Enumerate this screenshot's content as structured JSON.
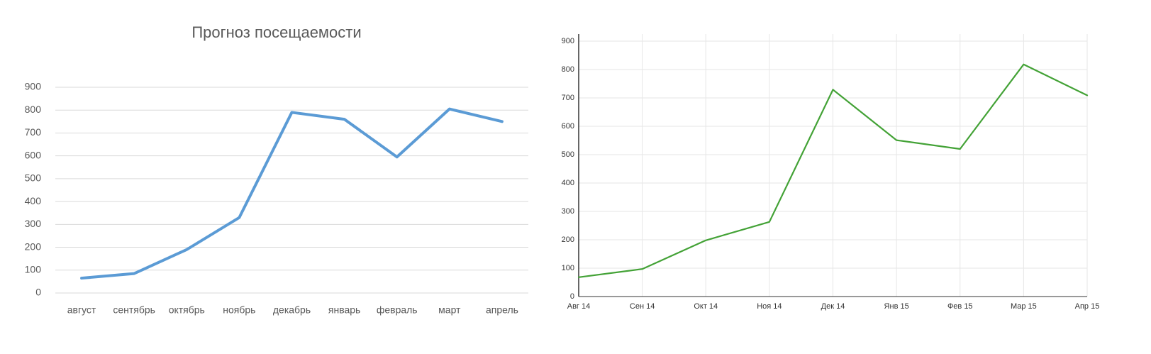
{
  "chart_data": [
    {
      "type": "line",
      "title": "Прогноз посещаемости",
      "categories": [
        "август",
        "сентябрь",
        "октябрь",
        "ноябрь",
        "декабрь",
        "январь",
        "февраль",
        "март",
        "апрель"
      ],
      "series": [
        {
          "color": "#5b9bd5",
          "values": [
            65,
            85,
            190,
            330,
            790,
            760,
            595,
            805,
            750
          ]
        }
      ],
      "ylim": [
        0,
        900
      ],
      "yticks": [
        0,
        100,
        200,
        300,
        400,
        500,
        600,
        700,
        800,
        900
      ],
      "grid": true
    },
    {
      "type": "line",
      "categories": [
        "Авг 14",
        "Сен 14",
        "Окт 14",
        "Ноя 14",
        "Дек 14",
        "Янв 15",
        "Фев 15",
        "Мар 15",
        "Апр 15"
      ],
      "series": [
        {
          "color": "#43a236",
          "values": [
            68,
            97,
            198,
            263,
            729,
            551,
            520,
            818,
            709
          ]
        }
      ],
      "ylim": [
        0,
        900
      ],
      "yticks": [
        0,
        100,
        200,
        300,
        400,
        500,
        600,
        700,
        800,
        900
      ],
      "grid": true
    }
  ]
}
